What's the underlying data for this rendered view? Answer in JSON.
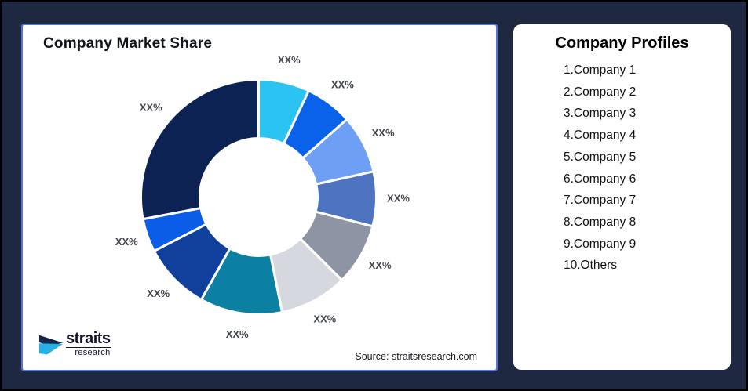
{
  "window": {
    "background": "#1e2840",
    "panel_border": "#5277d8"
  },
  "brand": {
    "name": "straits",
    "subname": "research",
    "icon_navy": "#132647",
    "icon_cyan": "#27b0e4"
  },
  "chart_data": {
    "type": "pie",
    "variant": "donut",
    "title": "Company Market Share",
    "source_text": "Source: straitsresearch.com",
    "hole_ratio": 0.5,
    "start_angle_deg": 0,
    "direction": "clockwise",
    "segments": [
      {
        "name": "Company 1",
        "label": "XX%",
        "share_pct_est": 7.0,
        "color": "#2bc3f2"
      },
      {
        "name": "Company 2",
        "label": "XX%",
        "share_pct_est": 6.5,
        "color": "#0b62ea"
      },
      {
        "name": "Company 3",
        "label": "XX%",
        "share_pct_est": 8.0,
        "color": "#6d9ff4"
      },
      {
        "name": "Company 4",
        "label": "XX%",
        "share_pct_est": 7.5,
        "color": "#4e74c1"
      },
      {
        "name": "Company 5",
        "label": "XX%",
        "share_pct_est": 8.5,
        "color": "#8d94a3"
      },
      {
        "name": "Company 6",
        "label": "XX%",
        "share_pct_est": 9.3,
        "color": "#d5d8de"
      },
      {
        "name": "Company 7",
        "label": "XX%",
        "share_pct_est": 11.3,
        "color": "#0c80a3"
      },
      {
        "name": "Company 8",
        "label": "XX%",
        "share_pct_est": 9.3,
        "color": "#10409c"
      },
      {
        "name": "Company 9",
        "label": "XX%",
        "share_pct_est": 4.6,
        "color": "#0b5ce6"
      },
      {
        "name": "Others",
        "label": "XX%",
        "share_pct_est": 28.0,
        "color": "#0b2253"
      }
    ]
  },
  "profiles": {
    "title": "Company Profiles",
    "items": [
      "1.Company 1",
      "2.Company 2",
      "3.Company 3",
      "4.Company 4",
      "5.Company 5",
      "6.Company 6",
      "7.Company 7",
      "8.Company 8",
      "9.Company 9",
      "10.Others"
    ]
  }
}
